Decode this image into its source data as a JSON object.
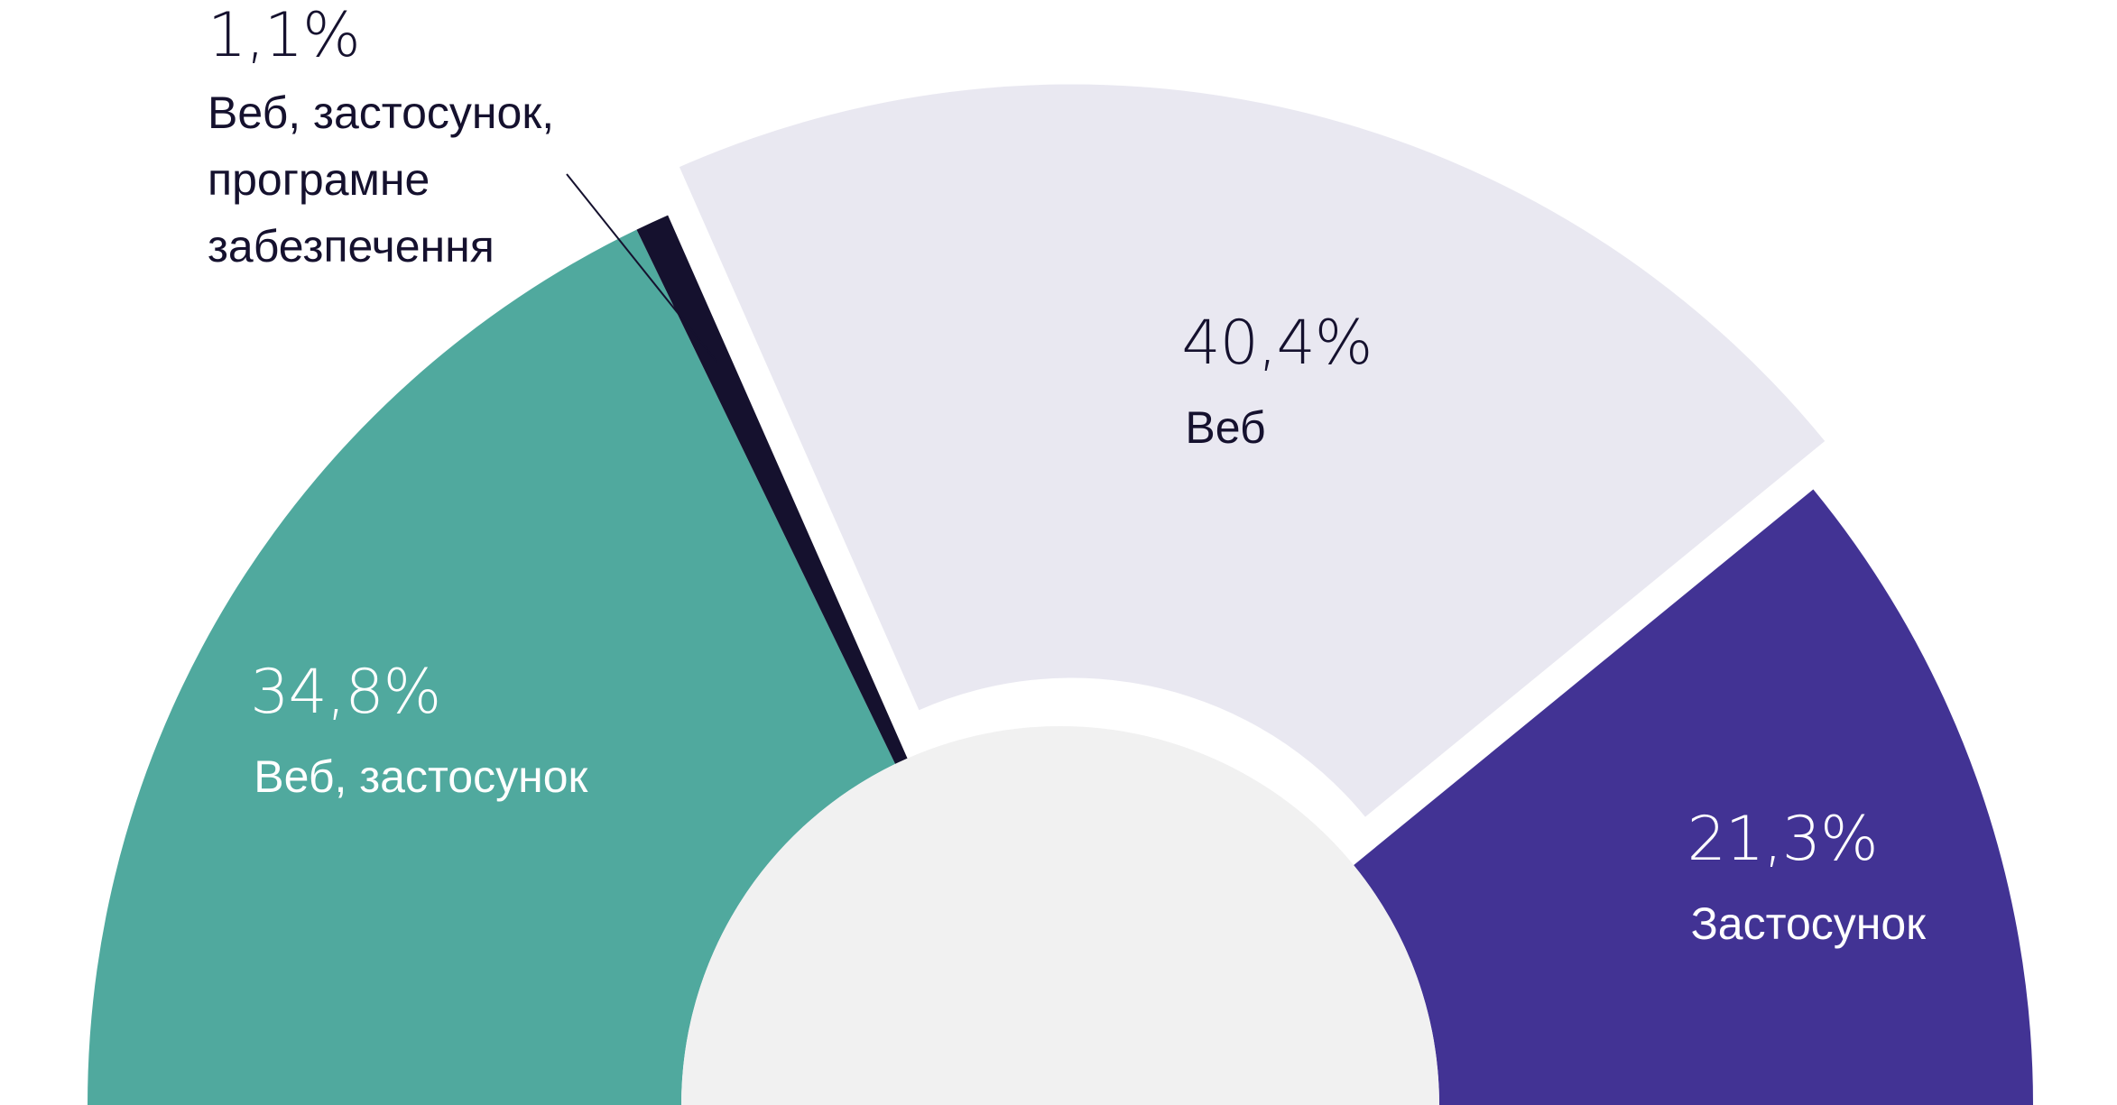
{
  "chart_data": {
    "type": "pie",
    "variant": "half-donut",
    "slices": [
      {
        "label": "Веб, застосунок",
        "value": 34.8,
        "value_label": "34,8%",
        "color": "#50a99e",
        "text_color": "#ffffff"
      },
      {
        "label": "Веб, застосунок, програмне забезпечення",
        "value": 1.1,
        "value_label": "1,1%",
        "color": "#15112e",
        "text_color": "#15112e",
        "label_lines": [
          "Веб, застосунок,",
          "програмне",
          "забезпечення"
        ]
      },
      {
        "label": "Веб",
        "value": 40.4,
        "value_label": "40,4%",
        "color": "#e9e8f1",
        "text_color": "#15112e",
        "exploded": true
      },
      {
        "label": "Застосунок",
        "value": 21.3,
        "value_label": "21,3%",
        "color": "#423394",
        "text_color": "#ffffff"
      }
    ],
    "inner_color": "#f1f1f1"
  }
}
